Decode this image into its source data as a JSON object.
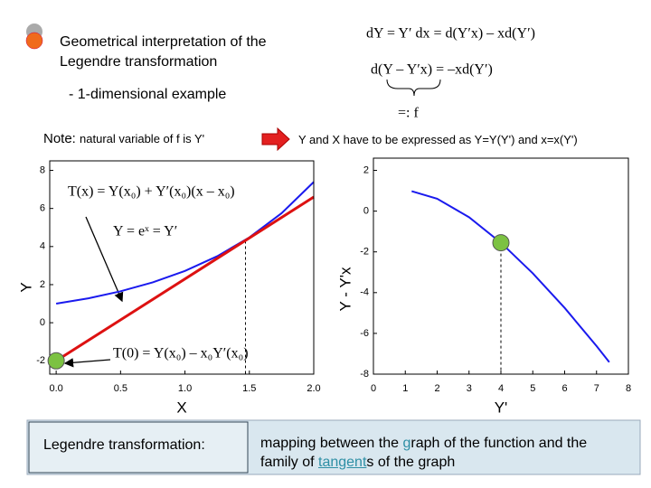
{
  "header": {
    "title_lines": [
      "Geometrical interpretation of the",
      "Legendre transformation"
    ],
    "subtitle": "- 1-dimensional example"
  },
  "equations": [
    "dY = Y′ dx = d(Y′x) – xd(Y′)",
    "d(Y – Y′x) = –xd(Y′)",
    "=: f"
  ],
  "note": {
    "label": "Note:",
    "text": "natural variable of f is Y'"
  },
  "conclusion": "Y and X have to be expressed as Y=Y(Y') and x=x(Y')",
  "footer": {
    "label": "Legendre transformation:",
    "segments": [
      "mapping between the ",
      "g",
      "raph of the function and the family of ",
      "tangent",
      "s of the graph"
    ]
  },
  "chart_data": [
    {
      "type": "line",
      "xlabel": "X",
      "ylabel": "Y",
      "xlim": [
        -0.05,
        2.0
      ],
      "ylim": [
        -2.7,
        8.5
      ],
      "xticks": [
        {
          "value": 0,
          "label": "0.0"
        },
        {
          "value": 0.5,
          "label": "0.5"
        },
        {
          "value": 1,
          "label": "1.0"
        },
        {
          "value": 1.5,
          "label": "1.5"
        },
        {
          "value": 2,
          "label": "2.0"
        }
      ],
      "yticks": [
        -2,
        0,
        2,
        4,
        6,
        8
      ],
      "series": [
        {
          "color": "#1a1aee",
          "x": [
            0,
            0.25,
            0.5,
            0.75,
            1,
            1.25,
            1.5,
            1.75,
            2
          ],
          "values": [
            1.0,
            1.28,
            1.65,
            2.12,
            2.72,
            3.49,
            4.48,
            5.75,
            7.39
          ]
        },
        {
          "color": "#dd1111",
          "x": [
            0,
            2
          ],
          "values": [
            -2,
            6.6
          ]
        }
      ],
      "points": [
        {
          "x": 0,
          "y": -2,
          "color": "#7cc242"
        }
      ],
      "guides": [
        {
          "x": 1.47,
          "y": 4.3
        }
      ],
      "annotations": [
        "T(x) = Y(x₀) + Y′(x₀)(x – x₀)",
        "Y = eˣ = Y′",
        "T(0) = Y(x₀) – x₀Y′(x₀)"
      ]
    },
    {
      "type": "line",
      "xlabel": "Y'",
      "ylabel": "Y - Y'x",
      "xlim": [
        0,
        8
      ],
      "ylim": [
        -8,
        2.6
      ],
      "xticks": [
        0,
        1,
        2,
        3,
        4,
        5,
        6,
        7,
        8
      ],
      "yticks": [
        2,
        0,
        -2,
        -4,
        -6,
        -8
      ],
      "series": [
        {
          "color": "#1a1aee",
          "x": [
            1.2,
            2,
            3,
            4,
            5,
            6,
            7,
            7.4
          ],
          "values": [
            0.98,
            0.61,
            -0.3,
            -1.55,
            -3.05,
            -4.75,
            -6.62,
            -7.41
          ]
        }
      ],
      "points": [
        {
          "x": 4,
          "y": -1.55,
          "color": "#7cc242"
        }
      ],
      "guides": [
        {
          "x": 4,
          "y": -1.55
        }
      ],
      "annotations": []
    }
  ]
}
